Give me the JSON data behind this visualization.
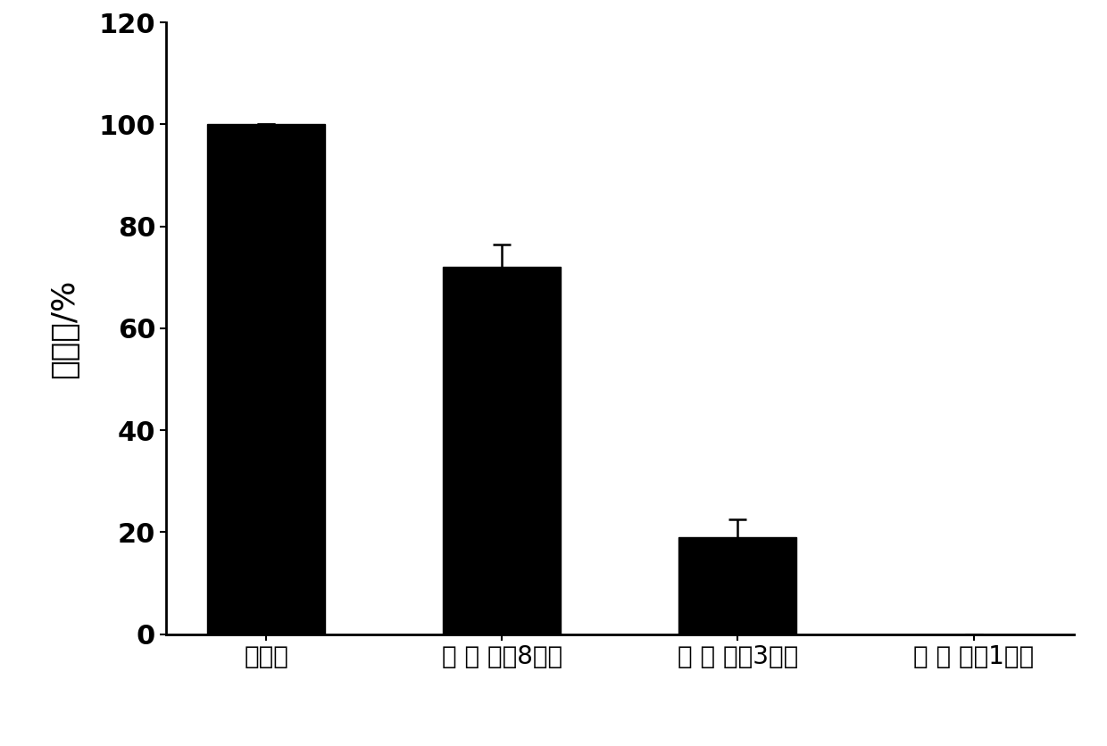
{
  "categories": [
    "对照组",
    "方 案 一（8天）",
    "方 案 二（3天）",
    "方 案 三（1天）"
  ],
  "values": [
    100,
    72,
    19,
    0
  ],
  "errors": [
    0,
    4.5,
    3.5,
    0
  ],
  "bar_color": "#000000",
  "ylabel": "存活率/%",
  "ylim": [
    0,
    120
  ],
  "yticks": [
    0,
    20,
    40,
    60,
    80,
    100,
    120
  ],
  "background_color": "#ffffff",
  "bar_width": 0.5,
  "ylabel_fontsize": 26,
  "tick_fontsize": 22,
  "xtick_fontsize": 20
}
